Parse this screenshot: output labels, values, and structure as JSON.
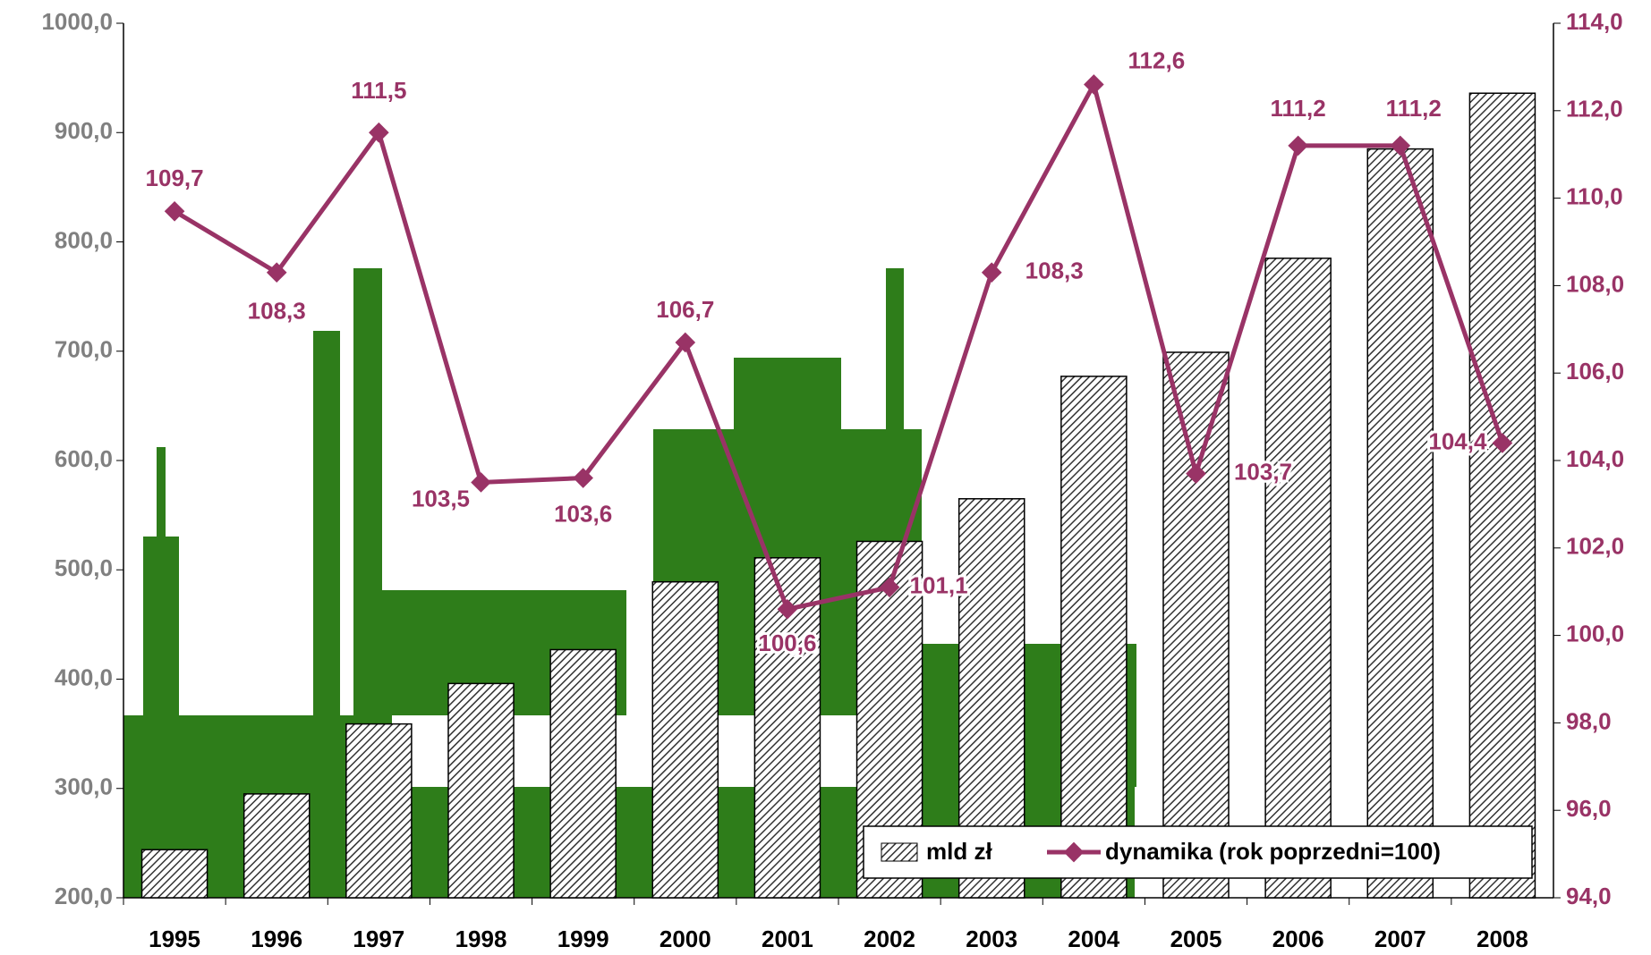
{
  "chart_data": {
    "type": "bar-line",
    "categories": [
      "1995",
      "1996",
      "1997",
      "1998",
      "1999",
      "2000",
      "2001",
      "2002",
      "2003",
      "2004",
      "2005",
      "2006",
      "2007",
      "2008"
    ],
    "series": [
      {
        "name": "mld zł",
        "type": "bar",
        "color": "#333333",
        "values": [
          244,
          295,
          359,
          396,
          427,
          489,
          511,
          526,
          565,
          677,
          699,
          785,
          885,
          936
        ]
      },
      {
        "name": "dynamika (rok poprzedni=100)",
        "type": "line",
        "axis": "y2",
        "color": "#993366",
        "values": [
          109.7,
          108.3,
          111.5,
          103.5,
          103.6,
          106.7,
          100.6,
          101.1,
          108.3,
          112.6,
          103.7,
          111.2,
          111.2,
          104.4
        ],
        "value_labels": [
          "109,7",
          "108,3",
          "111,5",
          "103,5",
          "103,6",
          "106,7",
          "100,6",
          "101,1",
          "108,3",
          "112,6",
          "103,7",
          "111,2",
          "111,2",
          "104,4"
        ]
      }
    ],
    "ylim": [
      200,
      1000
    ],
    "yticks": [
      {
        "value": 200,
        "label": "200,0"
      },
      {
        "value": 300,
        "label": "300,0"
      },
      {
        "value": 400,
        "label": "400,0"
      },
      {
        "value": 500,
        "label": "500,0"
      },
      {
        "value": 600,
        "label": "600,0"
      },
      {
        "value": 700,
        "label": "700,0"
      },
      {
        "value": 800,
        "label": "800,0"
      },
      {
        "value": 900,
        "label": "900,0"
      },
      {
        "value": 1000,
        "label": "1000,0"
      }
    ],
    "y2lim": [
      94,
      114
    ],
    "y2ticks": [
      {
        "value": 94,
        "label": "94,0"
      },
      {
        "value": 96,
        "label": "96,0"
      },
      {
        "value": 98,
        "label": "98,0"
      },
      {
        "value": 100,
        "label": "100,0"
      },
      {
        "value": 102,
        "label": "102,0"
      },
      {
        "value": 104,
        "label": "104,0"
      },
      {
        "value": 106,
        "label": "106,0"
      },
      {
        "value": 108,
        "label": "108,0"
      },
      {
        "value": 110,
        "label": "110,0"
      },
      {
        "value": 112,
        "label": "112,0"
      },
      {
        "value": 114,
        "label": "114,0"
      }
    ],
    "legend": "lower right"
  }
}
